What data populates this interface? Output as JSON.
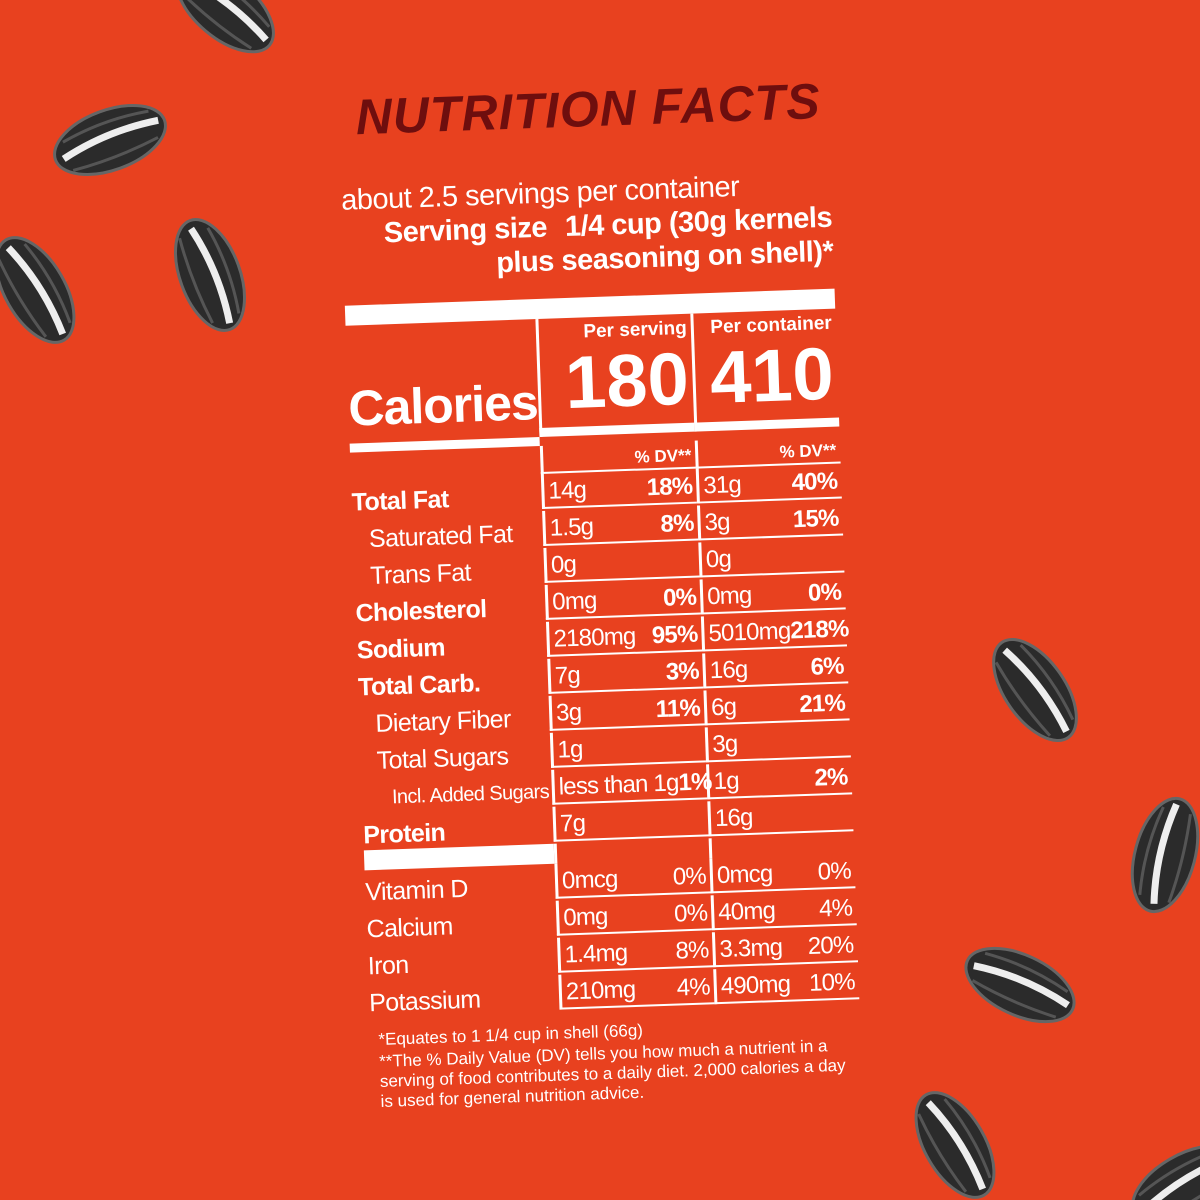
{
  "title": "NUTRITION FACTS",
  "servings_per_container": "about 2.5 servings per container",
  "serving_size": {
    "label": "Serving size",
    "value": "1/4 cup (30g kernels plus seasoning on shell)*"
  },
  "columns": [
    "Per serving",
    "Per container"
  ],
  "calories": {
    "label": "Calories",
    "values": [
      180,
      410
    ]
  },
  "dv_header": [
    "% DV**",
    "% DV**"
  ],
  "nutrients": [
    {
      "name": "Total Fat",
      "per_serving": {
        "amount": "14g",
        "dv": "18%"
      },
      "per_container": {
        "amount": "31g",
        "dv": "40%"
      }
    },
    {
      "name": "Saturated Fat",
      "per_serving": {
        "amount": "1.5g",
        "dv": "8%"
      },
      "per_container": {
        "amount": "3g",
        "dv": "15%"
      }
    },
    {
      "name": "Trans Fat",
      "per_serving": {
        "amount": "0g",
        "dv": null
      },
      "per_container": {
        "amount": "0g",
        "dv": null
      }
    },
    {
      "name": "Cholesterol",
      "per_serving": {
        "amount": "0mg",
        "dv": "0%"
      },
      "per_container": {
        "amount": "0mg",
        "dv": "0%"
      }
    },
    {
      "name": "Sodium",
      "per_serving": {
        "amount": "2180mg",
        "dv": "95%"
      },
      "per_container": {
        "amount": "5010mg",
        "dv": "218%"
      }
    },
    {
      "name": "Total Carb.",
      "per_serving": {
        "amount": "7g",
        "dv": "3%"
      },
      "per_container": {
        "amount": "16g",
        "dv": "6%"
      }
    },
    {
      "name": "Dietary Fiber",
      "per_serving": {
        "amount": "3g",
        "dv": "11%"
      },
      "per_container": {
        "amount": "6g",
        "dv": "21%"
      }
    },
    {
      "name": "Total Sugars",
      "per_serving": {
        "amount": "1g",
        "dv": null
      },
      "per_container": {
        "amount": "3g",
        "dv": null
      }
    },
    {
      "name": "Incl. Added Sugars",
      "per_serving": {
        "amount": "less than 1g",
        "dv": "1%"
      },
      "per_container": {
        "amount": "1g",
        "dv": "2%"
      }
    },
    {
      "name": "Protein",
      "per_serving": {
        "amount": "7g",
        "dv": null
      },
      "per_container": {
        "amount": "16g",
        "dv": null
      }
    }
  ],
  "vitamins": [
    {
      "name": "Vitamin D",
      "per_serving": {
        "amount": "0mcg",
        "dv": "0%"
      },
      "per_container": {
        "amount": "0mcg",
        "dv": "0%"
      }
    },
    {
      "name": "Calcium",
      "per_serving": {
        "amount": "0mg",
        "dv": "0%"
      },
      "per_container": {
        "amount": "40mg",
        "dv": "4%"
      }
    },
    {
      "name": "Iron",
      "per_serving": {
        "amount": "1.4mg",
        "dv": "8%"
      },
      "per_container": {
        "amount": "3.3mg",
        "dv": "20%"
      }
    },
    {
      "name": "Potassium",
      "per_serving": {
        "amount": "210mg",
        "dv": "4%"
      },
      "per_container": {
        "amount": "490mg",
        "dv": "10%"
      }
    }
  ],
  "footnotes": [
    "*Equates to 1 1/4 cup in shell (66g)",
    "**The % Daily Value (DV) tells you how much a nutrient in a serving of food contributes to a daily diet. 2,000 calories a day is used for general nutrition advice."
  ]
}
